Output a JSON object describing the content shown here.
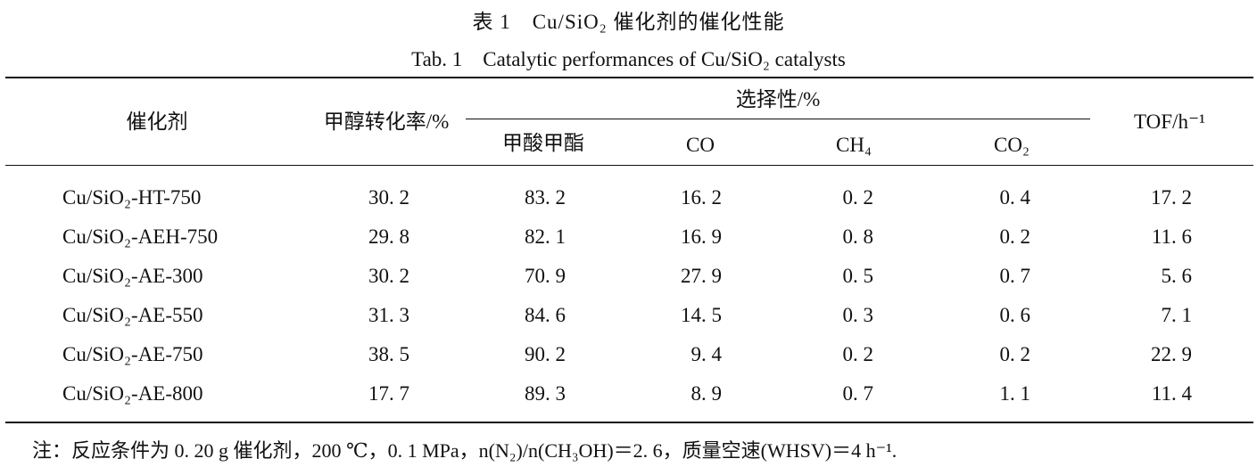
{
  "title_cn": "表 1　Cu/SiO₂ 催化剂的催化性能",
  "title_en": "Tab. 1　Catalytic performances of Cu/SiO₂ catalysts",
  "headers": {
    "catalyst": "催化剂",
    "conversion": "甲醇转化率/%",
    "selectivity_group": "选择性/%",
    "mf": "甲酸甲酯",
    "co": "CO",
    "ch4": "CH₄",
    "co2": "CO₂",
    "tof": "TOF/h⁻¹"
  },
  "rows": [
    {
      "catalyst": "Cu/SiO₂-HT-750",
      "conversion": "30. 2",
      "mf": "83. 2",
      "co": "16. 2",
      "ch4": "0. 2",
      "co2": "0. 4",
      "tof": "17. 2"
    },
    {
      "catalyst": "Cu/SiO₂-AEH-750",
      "conversion": "29. 8",
      "mf": "82. 1",
      "co": "16. 9",
      "ch4": "0. 8",
      "co2": "0. 2",
      "tof": "11. 6"
    },
    {
      "catalyst": "Cu/SiO₂-AE-300",
      "conversion": "30. 2",
      "mf": "70. 9",
      "co": "27. 9",
      "ch4": "0. 5",
      "co2": "0. 7",
      "tof": "5. 6"
    },
    {
      "catalyst": "Cu/SiO₂-AE-550",
      "conversion": "31. 3",
      "mf": "84. 6",
      "co": "14. 5",
      "ch4": "0. 3",
      "co2": "0. 6",
      "tof": "7. 1"
    },
    {
      "catalyst": "Cu/SiO₂-AE-750",
      "conversion": "38. 5",
      "mf": "90. 2",
      "co": "9. 4",
      "ch4": "0. 2",
      "co2": "0. 2",
      "tof": "22. 9"
    },
    {
      "catalyst": "Cu/SiO₂-AE-800",
      "conversion": "17. 7",
      "mf": "89. 3",
      "co": "8. 9",
      "ch4": "0. 7",
      "co2": "1. 1",
      "tof": "11. 4"
    }
  ],
  "note": "注：反应条件为 0. 20 g 催化剂，200 ℃，0. 1 MPa，n(N₂)/n(CH₃OH)＝2. 6，质量空速(WHSV)＝4 h⁻¹."
}
